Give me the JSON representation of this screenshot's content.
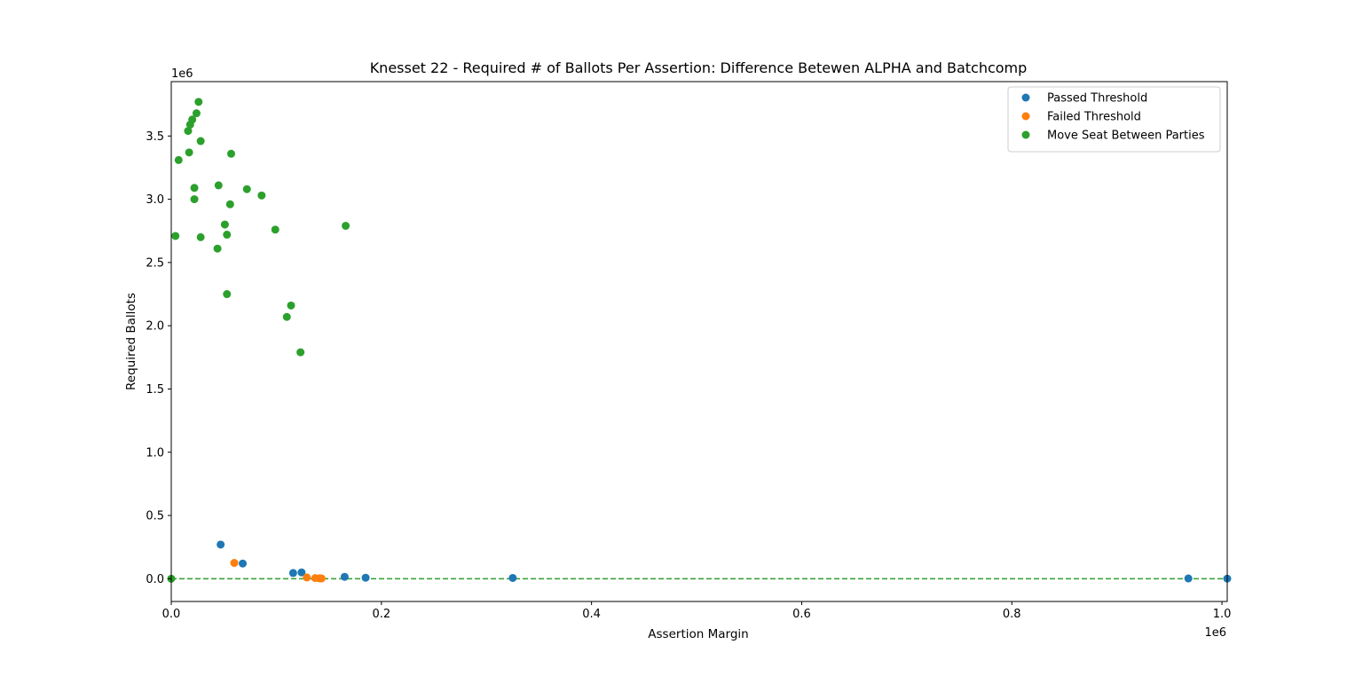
{
  "chart_data": {
    "type": "scatter",
    "title": "Knesset 22 - Required # of Ballots Per Assertion: Difference Betewen ALPHA and Batchcomp",
    "xlabel": "Assertion Margin",
    "ylabel": "Required Ballots",
    "x_offset_text": "1e6",
    "y_offset_text": "1e6",
    "xlim": [
      0,
      1005000
    ],
    "ylim": [
      -180000,
      3930000
    ],
    "x_ticks": [
      {
        "value": 0,
        "label": "0.0"
      },
      {
        "value": 200000,
        "label": "0.2"
      },
      {
        "value": 400000,
        "label": "0.4"
      },
      {
        "value": 600000,
        "label": "0.6"
      },
      {
        "value": 800000,
        "label": "0.8"
      },
      {
        "value": 1000000,
        "label": "1.0"
      }
    ],
    "y_ticks": [
      {
        "value": 0,
        "label": "0.0"
      },
      {
        "value": 500000,
        "label": "0.5"
      },
      {
        "value": 1000000,
        "label": "1.0"
      },
      {
        "value": 1500000,
        "label": "1.5"
      },
      {
        "value": 2000000,
        "label": "2.0"
      },
      {
        "value": 2500000,
        "label": "2.5"
      },
      {
        "value": 3000000,
        "label": "3.0"
      },
      {
        "value": 3500000,
        "label": "3.5"
      }
    ],
    "reference_line": {
      "y": 0,
      "style": "dashed",
      "color": "#2ca02c"
    },
    "grid": false,
    "legend_position": "top-right",
    "series": [
      {
        "name": "Passed Threshold",
        "color": "#1f77b4",
        "points": [
          {
            "x": 47000,
            "y": 270000
          },
          {
            "x": 68000,
            "y": 120000
          },
          {
            "x": 116000,
            "y": 45000
          },
          {
            "x": 124000,
            "y": 50000
          },
          {
            "x": 165000,
            "y": 15000
          },
          {
            "x": 185000,
            "y": 8000
          },
          {
            "x": 325000,
            "y": 6000
          },
          {
            "x": 968000,
            "y": 2000
          },
          {
            "x": 1005000,
            "y": 1000
          }
        ]
      },
      {
        "name": "Failed Threshold",
        "color": "#ff7f0e",
        "points": [
          {
            "x": 60000,
            "y": 125000
          },
          {
            "x": 129000,
            "y": 10000
          },
          {
            "x": 137000,
            "y": 5000
          },
          {
            "x": 141000,
            "y": 3000
          },
          {
            "x": 143000,
            "y": 2000
          }
        ]
      },
      {
        "name": "Move Seat Between Parties",
        "color": "#2ca02c",
        "points": [
          {
            "x": 0,
            "y": 0
          },
          {
            "x": 4000,
            "y": 2710000
          },
          {
            "x": 7000,
            "y": 3310000
          },
          {
            "x": 16000,
            "y": 3540000
          },
          {
            "x": 17000,
            "y": 3370000
          },
          {
            "x": 18000,
            "y": 3590000
          },
          {
            "x": 20000,
            "y": 3630000
          },
          {
            "x": 22000,
            "y": 3090000
          },
          {
            "x": 22000,
            "y": 3000000
          },
          {
            "x": 24000,
            "y": 3680000
          },
          {
            "x": 26000,
            "y": 3770000
          },
          {
            "x": 28000,
            "y": 3460000
          },
          {
            "x": 28000,
            "y": 2700000
          },
          {
            "x": 44000,
            "y": 2610000
          },
          {
            "x": 45000,
            "y": 3110000
          },
          {
            "x": 51000,
            "y": 2800000
          },
          {
            "x": 53000,
            "y": 2720000
          },
          {
            "x": 53000,
            "y": 2250000
          },
          {
            "x": 56000,
            "y": 2960000
          },
          {
            "x": 57000,
            "y": 3360000
          },
          {
            "x": 72000,
            "y": 3080000
          },
          {
            "x": 86000,
            "y": 3030000
          },
          {
            "x": 99000,
            "y": 2760000
          },
          {
            "x": 110000,
            "y": 2070000
          },
          {
            "x": 114000,
            "y": 2160000
          },
          {
            "x": 123000,
            "y": 1790000
          },
          {
            "x": 166000,
            "y": 2790000
          }
        ]
      }
    ]
  }
}
